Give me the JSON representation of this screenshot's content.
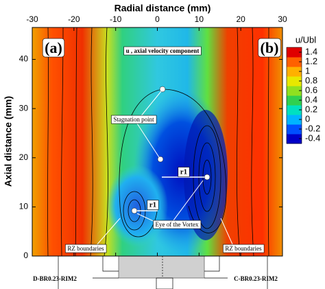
{
  "chart_data": {
    "type": "contour",
    "title": "Radial distance (mm)",
    "y_label": "Axial distance (mm)",
    "xlim": [
      -30,
      30
    ],
    "xticks": [
      -30,
      -20,
      -10,
      0,
      10,
      20,
      30
    ],
    "ylim": [
      0,
      46.5
    ],
    "yticks": [
      0,
      10,
      20,
      30,
      40
    ],
    "colorbar": {
      "label": "u/Ubl",
      "lim": [
        -0.5,
        1.5
      ],
      "ticks": [
        1.4,
        1.2,
        1,
        0.8,
        0.6,
        0.4,
        0.2,
        0,
        -0.2,
        -0.4
      ],
      "colors": [
        "#0000c8",
        "#0050ff",
        "#00b4ff",
        "#00e0c0",
        "#30d050",
        "#90e020",
        "#e8e800",
        "#ffb000",
        "#ff6000",
        "#e00000"
      ]
    },
    "annotations": [
      "(a)",
      "(b)",
      "u , axial velocity component",
      "Stagnation point",
      "r1",
      "r1",
      "Eye of the Vortex",
      "RZ boundaries",
      "RZ boundaries",
      "D-BR0.23-RIM2",
      "C-BR0.23-RIM2"
    ]
  }
}
